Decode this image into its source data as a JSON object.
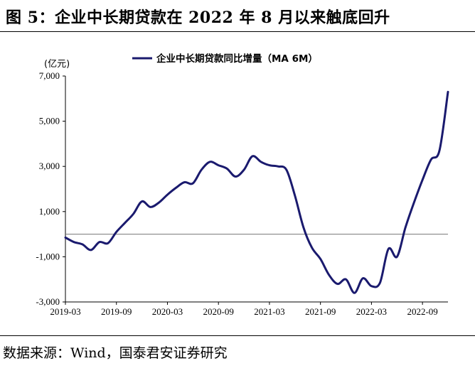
{
  "figure": {
    "title": "图 5：企业中长期贷款在 2022 年 8 月以来触底回升",
    "source": "数据来源：Wind，国泰君安证券研究",
    "unit_label": "(亿元)"
  },
  "chart_data": {
    "type": "line",
    "title": "企业中长期贷款在 2022 年 8 月以来触底回升",
    "xlabel": "",
    "ylabel": "(亿元)",
    "ylim": [
      -3000,
      7000
    ],
    "yticks": [
      -3000,
      -1000,
      1000,
      3000,
      5000,
      7000
    ],
    "ytick_labels": [
      "-3,000",
      "-1,000",
      "1,000",
      "3,000",
      "5,000",
      "7,000"
    ],
    "xticks": [
      "2019-03",
      "2019-09",
      "2020-03",
      "2020-09",
      "2021-03",
      "2021-09",
      "2022-03",
      "2022-09"
    ],
    "x_range_months": [
      "2019-03",
      "2022-12"
    ],
    "legend_position": "top",
    "grid": false,
    "series": [
      {
        "name": "企业中长期贷款同比增量（MA 6M）",
        "color": "#1a1a6e",
        "points": [
          {
            "x": "2019-03",
            "y": -150
          },
          {
            "x": "2019-04",
            "y": -350
          },
          {
            "x": "2019-05",
            "y": -450
          },
          {
            "x": "2019-06",
            "y": -700
          },
          {
            "x": "2019-07",
            "y": -350
          },
          {
            "x": "2019-08",
            "y": -400
          },
          {
            "x": "2019-09",
            "y": 100
          },
          {
            "x": "2019-10",
            "y": 500
          },
          {
            "x": "2019-11",
            "y": 900
          },
          {
            "x": "2019-12",
            "y": 1450
          },
          {
            "x": "2020-01",
            "y": 1200
          },
          {
            "x": "2020-02",
            "y": 1400
          },
          {
            "x": "2020-03",
            "y": 1750
          },
          {
            "x": "2020-04",
            "y": 2050
          },
          {
            "x": "2020-05",
            "y": 2300
          },
          {
            "x": "2020-06",
            "y": 2250
          },
          {
            "x": "2020-07",
            "y": 2850
          },
          {
            "x": "2020-08",
            "y": 3200
          },
          {
            "x": "2020-09",
            "y": 3050
          },
          {
            "x": "2020-10",
            "y": 2900
          },
          {
            "x": "2020-11",
            "y": 2550
          },
          {
            "x": "2020-12",
            "y": 2850
          },
          {
            "x": "2021-01",
            "y": 3450
          },
          {
            "x": "2021-02",
            "y": 3200
          },
          {
            "x": "2021-03",
            "y": 3050
          },
          {
            "x": "2021-04",
            "y": 3000
          },
          {
            "x": "2021-05",
            "y": 2850
          },
          {
            "x": "2021-06",
            "y": 1700
          },
          {
            "x": "2021-07",
            "y": 300
          },
          {
            "x": "2021-08",
            "y": -600
          },
          {
            "x": "2021-09",
            "y": -1100
          },
          {
            "x": "2021-10",
            "y": -1800
          },
          {
            "x": "2021-11",
            "y": -2200
          },
          {
            "x": "2021-12",
            "y": -2000
          },
          {
            "x": "2022-01",
            "y": -2600
          },
          {
            "x": "2022-02",
            "y": -1950
          },
          {
            "x": "2022-03",
            "y": -2300
          },
          {
            "x": "2022-04",
            "y": -2150
          },
          {
            "x": "2022-05",
            "y": -650
          },
          {
            "x": "2022-06",
            "y": -1000
          },
          {
            "x": "2022-07",
            "y": 300
          },
          {
            "x": "2022-08",
            "y": 1400
          },
          {
            "x": "2022-09",
            "y": 2400
          },
          {
            "x": "2022-10",
            "y": 3300
          },
          {
            "x": "2022-11",
            "y": 3700
          },
          {
            "x": "2022-12",
            "y": 6300
          }
        ]
      }
    ]
  }
}
